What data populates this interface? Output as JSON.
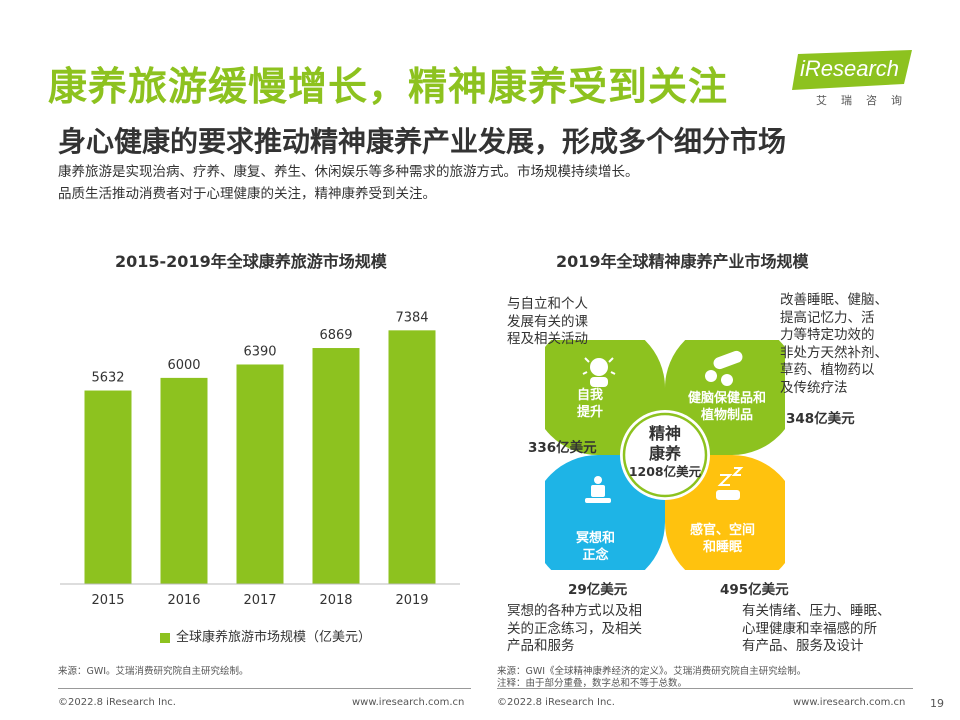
{
  "header": {
    "title": "康养旅游缓慢增长，精神康养受到关注",
    "subtitle": "身心健康的要求推动精神康养产业发展，形成多个细分市场",
    "desc_line1": "康养旅游是实现治病、疗养、康复、养生、休闲娱乐等多种需求的旅游方式。市场规模持续增长。",
    "desc_line2": "品质生活推动消费者对于心理健康的关注，精神康养受到关注。"
  },
  "logo": {
    "text": "iResearch",
    "sub": "艾瑞咨询",
    "color": "#8dc21f"
  },
  "colors": {
    "green": "#8dc21f",
    "blue": "#1eb4e6",
    "yellow": "#ffc20e"
  },
  "chart_data": [
    {
      "type": "bar",
      "title": "2015-2019年全球康养旅游市场规模",
      "categories": [
        "2015",
        "2016",
        "2017",
        "2018",
        "2019"
      ],
      "series": [
        {
          "name": "全球康养旅游市场规模（亿美元）",
          "values": [
            5632,
            6000,
            6390,
            6869,
            7384
          ]
        }
      ],
      "ylim": [
        0,
        8500
      ],
      "grid": false,
      "legend_position": "bottom"
    },
    {
      "type": "pie",
      "title": "2019年全球精神康养产业市场规模",
      "center": {
        "line1": "精神",
        "line2": "康养",
        "total": "1208亿美元"
      },
      "segments": [
        {
          "label": "自我提升",
          "label_line1": "自我",
          "label_line2": "提升",
          "value_text": "336亿美元",
          "value": 336,
          "color": "#8dc21f",
          "icon": "person-sparkle-icon",
          "description": "与自立和个人发展有关的课程及相关活动"
        },
        {
          "label": "健脑保健品和植物制品",
          "label_line1": "健脑保健品和",
          "label_line2": "植物制品",
          "value_text": "348亿美元",
          "value": 348,
          "color": "#8dc21f",
          "icon": "pills-icon",
          "description": "改善睡眠、健脑、提高记忆力、活力等特定功效的非处方天然补剂、草药、植物药以及传统疗法"
        },
        {
          "label": "冥想和正念",
          "label_line1": "冥想和",
          "label_line2": "正念",
          "value_text": "29亿美元",
          "value": 29,
          "color": "#1eb4e6",
          "icon": "meditation-icon",
          "description": "冥想的各种方式以及相关的正念练习，及相关产品和服务"
        },
        {
          "label": "感官、空间和睡眠",
          "label_line1": "感官、空间",
          "label_line2": "和睡眠",
          "value_text": "495亿美元",
          "value": 495,
          "color": "#ffc20e",
          "icon": "sleep-zzz-icon",
          "description": "有关情绪、压力、睡眠、心理健康和幸福感的所有产品、服务及设计"
        }
      ]
    }
  ],
  "ann": {
    "tl": [
      "与自立和个人",
      "发展有关的课",
      "程及相关活动"
    ],
    "tr": [
      "改善睡眠、健脑、",
      "提高记忆力、活",
      "力等特定功效的",
      "非处方天然补剂、",
      "草药、植物药以",
      "及传统疗法"
    ],
    "bl": [
      "冥想的各种方式以及相",
      "关的正念练习，及相关",
      "产品和服务"
    ],
    "br": [
      "有关情绪、压力、睡眠、",
      "心理健康和幸福感的所",
      "有产品、服务及设计"
    ]
  },
  "sources": {
    "left": "来源：GWI。艾瑞消费研究院自主研究绘制。",
    "right_line1": "来源：GWI《全球精神康养经济的定义》。艾瑞消费研究院自主研究绘制。",
    "right_line2": "注释：由于部分重叠，数字总和不等于总数。"
  },
  "footer": {
    "copyright": "©2022.8 iResearch Inc.",
    "url": "www.iresearch.com.cn",
    "page": "19"
  }
}
